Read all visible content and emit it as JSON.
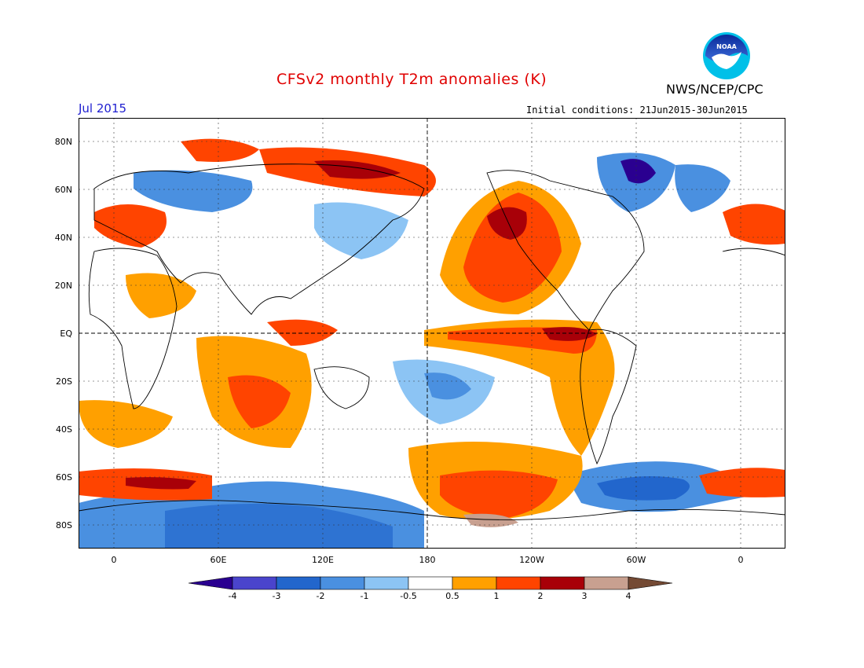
{
  "header": {
    "title": "CFSv2 monthly T2m anomalies (K)",
    "agency": "NWS/NCEP/CPC",
    "logo_text": "NOAA",
    "month": "Jul 2015",
    "initial_conditions": "Initial conditions: 21Jun2015-30Jun2015"
  },
  "map": {
    "lat_labels": [
      "80N",
      "60N",
      "40N",
      "20N",
      "EQ",
      "20S",
      "40S",
      "60S",
      "80S"
    ],
    "lon_labels": [
      "0",
      "60E",
      "120E",
      "180",
      "120W",
      "60W",
      "0"
    ]
  },
  "colorbar": {
    "labels": [
      "-4",
      "-3",
      "-2",
      "-1",
      "-0.5",
      "0.5",
      "1",
      "2",
      "3",
      "4"
    ],
    "colors": [
      "#2a0090",
      "#4a44cc",
      "#2266cc",
      "#4a90e0",
      "#8cc4f4",
      "#ffffff",
      "#ffa000",
      "#ff4400",
      "#a80008",
      "#c8a090",
      "#744a34"
    ]
  },
  "colors": {
    "title": "#e00000",
    "month": "#2020d0"
  }
}
